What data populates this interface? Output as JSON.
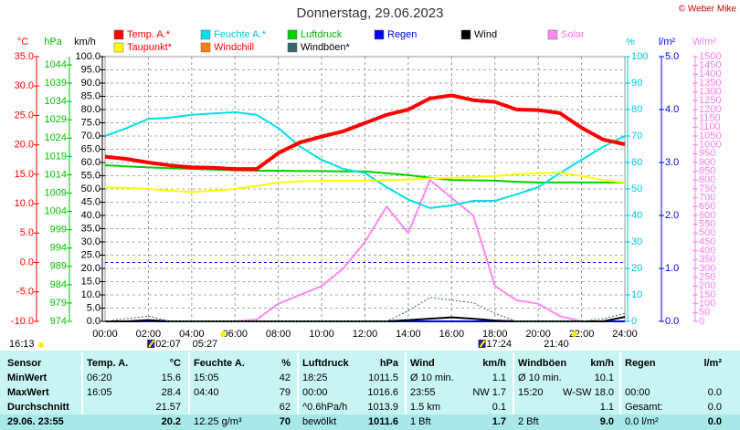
{
  "chart_data": {
    "type": "line",
    "title": "Donnerstag, 29.06.2023",
    "credit": "© Weber Mike",
    "xlim": [
      0,
      24
    ],
    "xticks": [
      {
        "value": 0,
        "label": "00:00"
      },
      {
        "value": 2,
        "label": "02:00"
      },
      {
        "value": 4,
        "label": "04:00"
      },
      {
        "value": 6,
        "label": "06:00"
      },
      {
        "value": 8,
        "label": "08:00"
      },
      {
        "value": 10,
        "label": "10:00"
      },
      {
        "value": 12,
        "label": "12:00"
      },
      {
        "value": 14,
        "label": "14:00"
      },
      {
        "value": 16,
        "label": "16:00"
      },
      {
        "value": 18,
        "label": "18:00"
      },
      {
        "value": 20,
        "label": "20:00"
      },
      {
        "value": 22,
        "label": "22:00"
      },
      {
        "value": 24,
        "label": "24:00"
      }
    ],
    "grid": true,
    "axes": {
      "y1": {
        "title": "°C",
        "color": "#ff0000",
        "lim": [
          -10,
          35
        ],
        "ticks": [
          {
            "value": -10,
            "label": "-10.0"
          },
          {
            "value": -5,
            "label": "-5.0"
          },
          {
            "value": 0,
            "label": "0.0"
          },
          {
            "value": 5,
            "label": "5.0"
          },
          {
            "value": 10,
            "label": "10.0"
          },
          {
            "value": 15,
            "label": "15.0"
          },
          {
            "value": 20,
            "label": "20.0"
          },
          {
            "value": 25,
            "label": "25.0"
          },
          {
            "value": 30,
            "label": "30.0"
          },
          {
            "value": 35,
            "label": "35.0"
          }
        ]
      },
      "y2": {
        "title": "hPa",
        "color": "#00c000",
        "lim": [
          974,
          1046.25
        ],
        "ticks": [
          974,
          979,
          984,
          989,
          994,
          999,
          1004,
          1009,
          1014,
          1019,
          1024,
          1029,
          1034,
          1039,
          1044
        ]
      },
      "y3": {
        "title": "km/h",
        "color": "#000000",
        "lim": [
          0,
          100
        ],
        "ticks": [
          {
            "value": 0,
            "label": "0.0"
          },
          {
            "value": 5,
            "label": "5.0"
          },
          {
            "value": 10,
            "label": "10.0"
          },
          {
            "value": 15,
            "label": "15.0"
          },
          {
            "value": 20,
            "label": "20.0"
          },
          {
            "value": 25,
            "label": "25.0"
          },
          {
            "value": 30,
            "label": "30.0"
          },
          {
            "value": 35,
            "label": "35.0"
          },
          {
            "value": 40,
            "label": "40.0"
          },
          {
            "value": 45,
            "label": "45.0"
          },
          {
            "value": 50,
            "label": "50.0"
          },
          {
            "value": 55,
            "label": "55.0"
          },
          {
            "value": 60,
            "label": "60.0"
          },
          {
            "value": 65,
            "label": "65.0"
          },
          {
            "value": 70,
            "label": "70.0"
          },
          {
            "value": 75,
            "label": "75.0"
          },
          {
            "value": 80,
            "label": "80.0"
          },
          {
            "value": 85,
            "label": "85.0"
          },
          {
            "value": 90,
            "label": "90.0"
          },
          {
            "value": 95,
            "label": "95.0"
          },
          {
            "value": 100,
            "label": "100.0"
          }
        ]
      },
      "y4": {
        "title": "%",
        "color": "#00c8d8",
        "lim": [
          0,
          100
        ],
        "ticks": [
          0,
          10,
          20,
          30,
          40,
          50,
          60,
          70,
          80,
          90,
          100
        ]
      },
      "y5": {
        "title": "l/m²",
        "color": "#0000ff",
        "lim": [
          0,
          5
        ],
        "ticks": [
          {
            "value": 0,
            "label": "0.0"
          },
          {
            "value": 1,
            "label": "1.0"
          },
          {
            "value": 2,
            "label": "2.0"
          },
          {
            "value": 3,
            "label": "3.0"
          },
          {
            "value": 4,
            "label": "4.0"
          },
          {
            "value": 5,
            "label": "5.0"
          }
        ]
      },
      "y6": {
        "title": "W/m²",
        "color": "#ff77ee",
        "lim": [
          0,
          1500
        ],
        "ticks": [
          0,
          50,
          100,
          150,
          200,
          250,
          300,
          350,
          400,
          450,
          500,
          550,
          600,
          650,
          700,
          750,
          800,
          850,
          900,
          950,
          1000,
          1050,
          1100,
          1150,
          1200,
          1250,
          1300,
          1350,
          1400,
          1450,
          1500
        ]
      }
    },
    "x": [
      0,
      1,
      2,
      3,
      4,
      5,
      6,
      7,
      8,
      9,
      10,
      11,
      12,
      13,
      14,
      15,
      16,
      17,
      18,
      19,
      20,
      21,
      22,
      23,
      24
    ],
    "series": [
      {
        "name": "Temp. A.*",
        "color": "#ff0000",
        "text_color": "#ff0000",
        "axis": "y1",
        "values": [
          18.0,
          17.6,
          17.0,
          16.5,
          16.2,
          16.1,
          15.9,
          15.9,
          18.6,
          20.4,
          21.4,
          22.3,
          23.7,
          25.1,
          26.0,
          27.9,
          28.4,
          27.6,
          27.3,
          26.0,
          25.9,
          25.4,
          22.9,
          20.9,
          20.1
        ]
      },
      {
        "name": "Feuchte A.*",
        "color": "#00e0e8",
        "text_color": "#00c8d8",
        "axis": "y4",
        "values": [
          70,
          73,
          76.5,
          77,
          78,
          78.5,
          79,
          78,
          73,
          66,
          61,
          57.6,
          56,
          50.7,
          46,
          42.8,
          43.8,
          45.5,
          45.5,
          48,
          50.7,
          56,
          61,
          66,
          70
        ]
      },
      {
        "name": "Luftdruck",
        "color": "#00d000",
        "text_color": "#00b000",
        "axis": "y2",
        "values": [
          1016.6,
          1016.3,
          1016.0,
          1015.8,
          1015.6,
          1015.4,
          1015.2,
          1015.1,
          1015.1,
          1015.0,
          1015.0,
          1014.9,
          1014.9,
          1014.4,
          1013.9,
          1013.2,
          1012.6,
          1012.5,
          1012.4,
          1012.1,
          1011.9,
          1011.9,
          1011.9,
          1011.9,
          1011.9
        ]
      },
      {
        "name": "Regen",
        "color": "#0000ff",
        "text_color": "#0000ff",
        "axis": "y5",
        "values": [
          0,
          0,
          0,
          0,
          0,
          0,
          0,
          0,
          0,
          0,
          0,
          0,
          0,
          0,
          0,
          0,
          0,
          0,
          0,
          0,
          0,
          0,
          0,
          0,
          0
        ]
      },
      {
        "name": "Wind",
        "color": "#000000",
        "text_color": "#000000",
        "axis": "y3",
        "values": [
          0,
          0,
          0.5,
          0,
          0,
          0,
          0,
          0,
          0,
          0,
          0,
          0,
          0,
          0,
          0.5,
          1,
          1.5,
          1,
          0.3,
          0,
          0,
          0,
          0,
          0,
          1.7
        ]
      },
      {
        "name": "Solar",
        "color": "#ff88ee",
        "text_color": "#ff77ee",
        "axis": "y6",
        "values": [
          0,
          0,
          0,
          0,
          0,
          0,
          0,
          10,
          100,
          150,
          200,
          300,
          450,
          650,
          500,
          800,
          700,
          600,
          200,
          120,
          100,
          30,
          0,
          0,
          0
        ]
      },
      {
        "name": "Taupunkt*",
        "color": "#ffff00",
        "text_color": "#ff0000",
        "axis": "y1",
        "values": [
          12.8,
          12.7,
          12.5,
          12.2,
          12.0,
          12.2,
          12.5,
          13.0,
          13.6,
          13.8,
          13.9,
          13.9,
          13.9,
          14.0,
          14.1,
          14.3,
          14.4,
          14.5,
          14.7,
          15.0,
          15.2,
          15.3,
          14.7,
          14.0,
          13.6
        ]
      },
      {
        "name": "Windchill",
        "color": "#ff8000",
        "text_color": "#ff0000",
        "axis": "y1",
        "values": [
          18.0,
          17.6,
          17.0,
          16.5,
          16.2,
          16.1,
          15.9,
          15.9,
          18.8,
          20.6,
          21.5,
          22.4,
          23.8,
          25.2,
          26.1,
          28.0,
          28.5,
          27.7,
          27.4,
          26.1,
          26.0,
          25.5,
          23.0,
          21.0,
          20.2
        ]
      },
      {
        "name": "Windböen*",
        "color": "#336666",
        "text_color": "#000000",
        "axis": "y3",
        "values": [
          0,
          1,
          2,
          0,
          0,
          0,
          0,
          0,
          0,
          0,
          0,
          0,
          0,
          0,
          4,
          9,
          8,
          7,
          3,
          0,
          0,
          0,
          0,
          1,
          3
        ]
      }
    ],
    "annotations": [
      {
        "text": "16:13",
        "kind": "sun"
      },
      {
        "text": "02:07",
        "x": 2.117,
        "kind": "moon"
      },
      {
        "text": "05:27",
        "x": 5.45,
        "kind": "sun"
      },
      {
        "text": "17:24",
        "x": 17.4,
        "kind": "moon"
      },
      {
        "text": "21:40",
        "x": 21.667,
        "kind": "sun"
      }
    ]
  },
  "table": {
    "header": [
      {
        "left": "Sensor"
      },
      {
        "left": "Temp. A.",
        "right": "°C"
      },
      {
        "left": "Feuchte A.",
        "right": "%"
      },
      {
        "left": "Luftdruck",
        "right": "hPa"
      },
      {
        "left": "Wind",
        "right": "km/h"
      },
      {
        "left": "Windböen",
        "right": "km/h"
      },
      {
        "left": "Regen",
        "right": "l/m²"
      }
    ],
    "rows": [
      [
        {
          "left": "MinWert"
        },
        {
          "left": "06:20",
          "right": "15.6"
        },
        {
          "left": "15:05",
          "right": "42"
        },
        {
          "left": "18:25",
          "right": "1011.5"
        },
        {
          "left": "Ø 10 min.",
          "right": "1.1"
        },
        {
          "left": "Ø 10 min.",
          "right": "10.1"
        },
        {}
      ],
      [
        {
          "left": "MaxWert"
        },
        {
          "left": "16:05",
          "right": "28.4"
        },
        {
          "left": "04:40",
          "right": "79"
        },
        {
          "left": "00:00",
          "right": "1016.6"
        },
        {
          "left": "23:55",
          "right": "NW 1.7"
        },
        {
          "left": "15:20",
          "right": "W-SW 18.0"
        },
        {
          "left": "00:00",
          "right": "0.0"
        }
      ],
      [
        {
          "left": "Durchschnitt"
        },
        {
          "right": "21.57"
        },
        {
          "right": "62"
        },
        {
          "left": "^0.6hPa/h",
          "right": "1013.9"
        },
        {
          "left": "1.5 km",
          "right": "0.1"
        },
        {
          "right": "1.1"
        },
        {
          "left": "Gesamt:",
          "right": "0.0"
        }
      ],
      [
        {
          "left": "29.06. 23:55"
        },
        {
          "right": "20.2"
        },
        {
          "left": "12.25 g/m³",
          "right": "70"
        },
        {
          "left": "bewölkt",
          "right": "1011.6"
        },
        {
          "left": "1 Bft",
          "right": "1.7"
        },
        {
          "left": "2 Bft",
          "right": "9.0"
        },
        {
          "left": "0.0 l/m²",
          "right": "0.0"
        }
      ]
    ]
  }
}
